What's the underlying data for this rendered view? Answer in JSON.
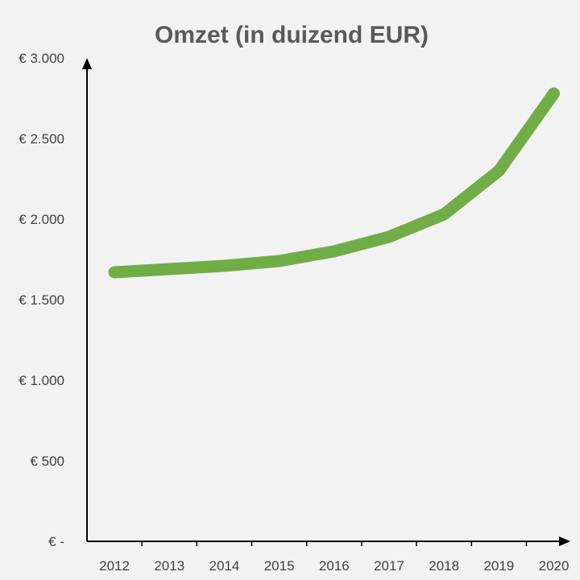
{
  "chart_data": {
    "type": "line",
    "title": "Omzet (in duizend EUR)",
    "xlabel": "",
    "ylabel": "",
    "categories": [
      "2012",
      "2013",
      "2014",
      "2015",
      "2016",
      "2017",
      "2018",
      "2019",
      "2020"
    ],
    "series": [
      {
        "values": [
          1670,
          1690,
          1710,
          1740,
          1800,
          1890,
          2030,
          2300,
          2780
        ]
      }
    ],
    "ylim": [
      0,
      3000
    ],
    "yticks": [
      0,
      500,
      1000,
      1500,
      2000,
      2500,
      3000
    ],
    "ytick_labels": [
      "€ -",
      "€ 500",
      "€ 1.000",
      "€ 1.500",
      "€ 2.000",
      "€ 2.500",
      "€ 3.000"
    ],
    "grid": false,
    "legend": "none",
    "line_color": "#70ad47",
    "axis_color": "#000000"
  }
}
